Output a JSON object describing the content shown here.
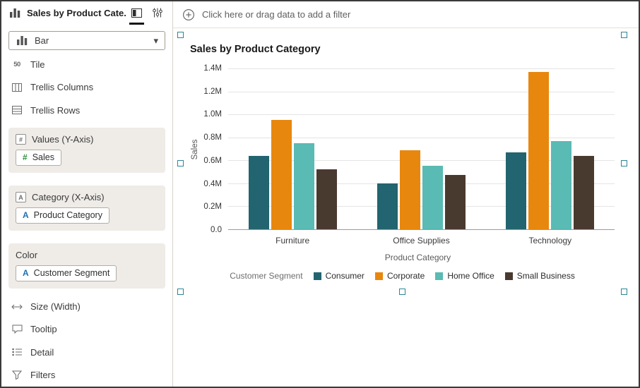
{
  "sidebar": {
    "title": "Sales by Product Cate...",
    "chart_type": "Bar",
    "rows_top": [
      {
        "label": "Tile"
      },
      {
        "label": "Trellis Columns"
      },
      {
        "label": "Trellis Rows"
      }
    ],
    "sections": {
      "values": {
        "label": "Values (Y-Axis)",
        "chip": {
          "prefix": "#",
          "label": "Sales"
        }
      },
      "category": {
        "label": "Category (X-Axis)",
        "chip": {
          "prefix": "A",
          "label": "Product Category"
        }
      },
      "color": {
        "label": "Color",
        "chip": {
          "prefix": "A",
          "label": "Customer Segment"
        }
      }
    },
    "rows_bottom": [
      {
        "label": "Size (Width)"
      },
      {
        "label": "Tooltip"
      },
      {
        "label": "Detail"
      },
      {
        "label": "Filters"
      }
    ]
  },
  "filter_bar": {
    "prompt": "Click here or drag data to add a filter"
  },
  "icons": {
    "tile_icon_text": "50",
    "dropdown_chevron": "▾",
    "values_head_glyph": "#",
    "category_head_glyph": "A"
  },
  "colors": {
    "selection_handle": "#2d8595",
    "measure_prefix": "#2f8c3c",
    "attribute_prefix": "#1f6fb2"
  },
  "chart_data": {
    "type": "bar",
    "title": "Sales by Product Category",
    "categories": [
      "Furniture",
      "Office Supplies",
      "Technology"
    ],
    "series": [
      {
        "name": "Consumer",
        "color": "#22646F",
        "values_millions": [
          0.64,
          0.4,
          0.67
        ]
      },
      {
        "name": "Corporate",
        "color": "#E8870E",
        "values_millions": [
          0.95,
          0.69,
          1.37
        ]
      },
      {
        "name": "Home Office",
        "color": "#5ABAB4",
        "values_millions": [
          0.75,
          0.55,
          0.77
        ]
      },
      {
        "name": "Small Business",
        "color": "#493A2F",
        "values_millions": [
          0.52,
          0.47,
          0.64
        ]
      }
    ],
    "xlabel": "Product Category",
    "ylabel": "Sales",
    "legend_title": "Customer Segment",
    "legend_position": "bottom",
    "grid": true,
    "y_ticks": [
      "1.4M",
      "1.2M",
      "1.0M",
      "0.8M",
      "0.6M",
      "0.4M",
      "0.2M",
      "0.0"
    ],
    "ylim_millions": [
      0,
      1.4
    ]
  }
}
